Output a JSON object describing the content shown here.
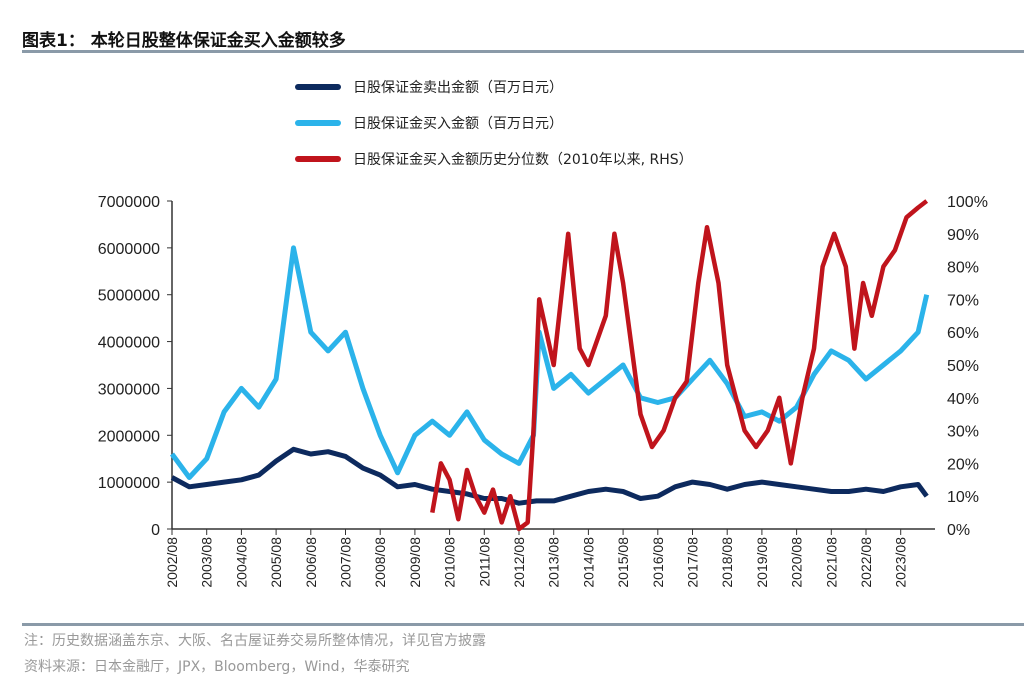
{
  "header": {
    "title": "图表1： 本轮日股整体保证金买入金额较多"
  },
  "footer": {
    "note": "注：历史数据涵盖东京、大阪、名古屋证券交易所整体情况，详见官方披露",
    "source": "资料来源：日本金融厅，JPX，Bloomberg，Wind，华泰研究"
  },
  "chart_data": {
    "type": "line",
    "legend_position": "top-center",
    "grid": false,
    "x_ticks": [
      "2002/08",
      "2003/08",
      "2004/08",
      "2005/08",
      "2006/08",
      "2007/08",
      "2008/08",
      "2009/08",
      "2010/08",
      "2011/08",
      "2012/08",
      "2013/08",
      "2014/08",
      "2015/08",
      "2016/08",
      "2017/08",
      "2018/08",
      "2019/08",
      "2020/08",
      "2021/08",
      "2022/08",
      "2023/08"
    ],
    "y_left": {
      "range": [
        0,
        7000000
      ],
      "ticks": [
        "0",
        "1000000",
        "2000000",
        "3000000",
        "4000000",
        "5000000",
        "6000000",
        "7000000"
      ]
    },
    "y_right": {
      "range": [
        0,
        100
      ],
      "ticks": [
        "0%",
        "10%",
        "20%",
        "30%",
        "40%",
        "50%",
        "60%",
        "70%",
        "80%",
        "90%",
        "100%"
      ]
    },
    "series": [
      {
        "name": "日股保证金卖出金额（百万日元）",
        "axis": "left",
        "color": "#0d2a5e",
        "points": [
          [
            "2002/08",
            1100000
          ],
          [
            "2003/02",
            900000
          ],
          [
            "2003/08",
            950000
          ],
          [
            "2004/02",
            1000000
          ],
          [
            "2004/08",
            1050000
          ],
          [
            "2005/02",
            1150000
          ],
          [
            "2005/08",
            1450000
          ],
          [
            "2006/02",
            1700000
          ],
          [
            "2006/08",
            1600000
          ],
          [
            "2007/02",
            1650000
          ],
          [
            "2007/08",
            1550000
          ],
          [
            "2008/02",
            1300000
          ],
          [
            "2008/08",
            1150000
          ],
          [
            "2009/02",
            900000
          ],
          [
            "2009/08",
            950000
          ],
          [
            "2010/02",
            850000
          ],
          [
            "2010/08",
            800000
          ],
          [
            "2011/02",
            750000
          ],
          [
            "2011/08",
            650000
          ],
          [
            "2012/02",
            650000
          ],
          [
            "2012/08",
            550000
          ],
          [
            "2013/02",
            600000
          ],
          [
            "2013/08",
            600000
          ],
          [
            "2014/02",
            700000
          ],
          [
            "2014/08",
            800000
          ],
          [
            "2015/02",
            850000
          ],
          [
            "2015/08",
            800000
          ],
          [
            "2016/02",
            650000
          ],
          [
            "2016/08",
            700000
          ],
          [
            "2017/02",
            900000
          ],
          [
            "2017/08",
            1000000
          ],
          [
            "2018/02",
            950000
          ],
          [
            "2018/08",
            850000
          ],
          [
            "2019/02",
            950000
          ],
          [
            "2019/08",
            1000000
          ],
          [
            "2020/02",
            950000
          ],
          [
            "2020/08",
            900000
          ],
          [
            "2021/02",
            850000
          ],
          [
            "2021/08",
            800000
          ],
          [
            "2022/02",
            800000
          ],
          [
            "2022/08",
            850000
          ],
          [
            "2023/02",
            800000
          ],
          [
            "2023/08",
            900000
          ],
          [
            "2024/02",
            950000
          ],
          [
            "2024/05",
            700000
          ]
        ]
      },
      {
        "name": "日股保证金买入金额（百万日元）",
        "axis": "left",
        "color": "#2bb3ea",
        "points": [
          [
            "2002/08",
            1600000
          ],
          [
            "2003/02",
            1100000
          ],
          [
            "2003/08",
            1500000
          ],
          [
            "2004/02",
            2500000
          ],
          [
            "2004/08",
            3000000
          ],
          [
            "2005/02",
            2600000
          ],
          [
            "2005/08",
            3200000
          ],
          [
            "2006/02",
            6000000
          ],
          [
            "2006/08",
            4200000
          ],
          [
            "2007/02",
            3800000
          ],
          [
            "2007/08",
            4200000
          ],
          [
            "2008/02",
            3000000
          ],
          [
            "2008/08",
            2000000
          ],
          [
            "2009/02",
            1200000
          ],
          [
            "2009/08",
            2000000
          ],
          [
            "2010/02",
            2300000
          ],
          [
            "2010/08",
            2000000
          ],
          [
            "2011/02",
            2500000
          ],
          [
            "2011/08",
            1900000
          ],
          [
            "2012/02",
            1600000
          ],
          [
            "2012/08",
            1400000
          ],
          [
            "2013/01",
            2000000
          ],
          [
            "2013/03",
            4200000
          ],
          [
            "2013/08",
            3000000
          ],
          [
            "2014/02",
            3300000
          ],
          [
            "2014/08",
            2900000
          ],
          [
            "2015/02",
            3200000
          ],
          [
            "2015/08",
            3500000
          ],
          [
            "2016/02",
            2800000
          ],
          [
            "2016/08",
            2700000
          ],
          [
            "2017/02",
            2800000
          ],
          [
            "2017/08",
            3200000
          ],
          [
            "2018/02",
            3600000
          ],
          [
            "2018/08",
            3100000
          ],
          [
            "2019/02",
            2400000
          ],
          [
            "2019/08",
            2500000
          ],
          [
            "2020/02",
            2300000
          ],
          [
            "2020/08",
            2600000
          ],
          [
            "2021/02",
            3300000
          ],
          [
            "2021/08",
            3800000
          ],
          [
            "2022/02",
            3600000
          ],
          [
            "2022/08",
            3200000
          ],
          [
            "2023/02",
            3500000
          ],
          [
            "2023/08",
            3800000
          ],
          [
            "2024/02",
            4200000
          ],
          [
            "2024/05",
            5000000
          ]
        ]
      },
      {
        "name": "日股保证金买入金额历史分位数（2010年以来, RHS）",
        "axis": "right",
        "color": "#c0141c",
        "points": [
          [
            "2010/02",
            5
          ],
          [
            "2010/05",
            20
          ],
          [
            "2010/08",
            15
          ],
          [
            "2010/11",
            3
          ],
          [
            "2011/02",
            18
          ],
          [
            "2011/05",
            10
          ],
          [
            "2011/08",
            5
          ],
          [
            "2011/11",
            12
          ],
          [
            "2012/02",
            2
          ],
          [
            "2012/05",
            10
          ],
          [
            "2012/08",
            0
          ],
          [
            "2012/11",
            2
          ],
          [
            "2013/01",
            30
          ],
          [
            "2013/03",
            70
          ],
          [
            "2013/08",
            50
          ],
          [
            "2014/01",
            90
          ],
          [
            "2014/05",
            55
          ],
          [
            "2014/08",
            50
          ],
          [
            "2015/02",
            65
          ],
          [
            "2015/05",
            90
          ],
          [
            "2015/08",
            75
          ],
          [
            "2015/11",
            55
          ],
          [
            "2016/02",
            35
          ],
          [
            "2016/06",
            25
          ],
          [
            "2016/10",
            30
          ],
          [
            "2017/02",
            40
          ],
          [
            "2017/06",
            45
          ],
          [
            "2017/10",
            75
          ],
          [
            "2018/01",
            92
          ],
          [
            "2018/05",
            75
          ],
          [
            "2018/08",
            50
          ],
          [
            "2018/11",
            40
          ],
          [
            "2019/02",
            30
          ],
          [
            "2019/06",
            25
          ],
          [
            "2019/10",
            30
          ],
          [
            "2020/02",
            40
          ],
          [
            "2020/06",
            20
          ],
          [
            "2020/10",
            40
          ],
          [
            "2021/02",
            55
          ],
          [
            "2021/05",
            80
          ],
          [
            "2021/09",
            90
          ],
          [
            "2022/01",
            80
          ],
          [
            "2022/04",
            55
          ],
          [
            "2022/07",
            75
          ],
          [
            "2022/10",
            65
          ],
          [
            "2023/02",
            80
          ],
          [
            "2023/06",
            85
          ],
          [
            "2023/10",
            95
          ],
          [
            "2024/02",
            98
          ],
          [
            "2024/05",
            100
          ]
        ]
      }
    ]
  }
}
